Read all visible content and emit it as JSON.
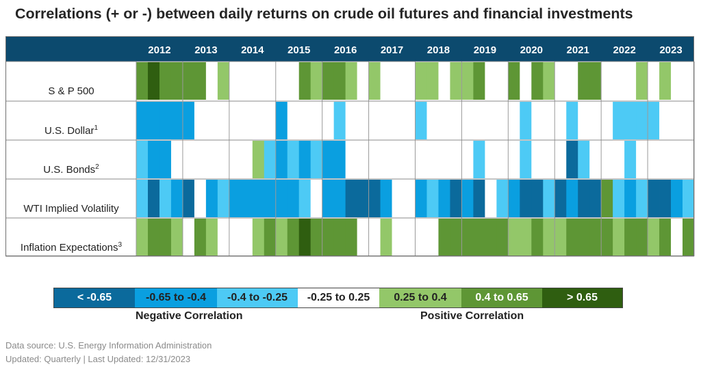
{
  "chart_data": {
    "type": "heatmap",
    "title": "Correlations (+ or -) between daily returns on crude oil futures and financial investments",
    "years": [
      "2012",
      "2013",
      "2014",
      "2015",
      "2016",
      "2017",
      "2018",
      "2019",
      "2020",
      "2021",
      "2022",
      "2023"
    ],
    "quarters_per_year": 4,
    "rows": [
      {
        "label": "S & P 500",
        "footnote": "",
        "values": [
          0.5,
          0.7,
          0.5,
          0.5,
          0.5,
          0.5,
          0.1,
          0.3,
          0.1,
          0.1,
          0.1,
          0.1,
          0.1,
          0.1,
          0.5,
          0.3,
          0.5,
          0.5,
          0.3,
          0.1,
          0.3,
          0.1,
          0.1,
          0.1,
          0.3,
          0.3,
          0.1,
          0.3,
          0.3,
          0.5,
          0.1,
          0.1,
          0.5,
          0.1,
          0.5,
          0.3,
          0.1,
          0.1,
          0.5,
          0.5,
          0.1,
          0.1,
          0.1,
          0.3,
          0.1,
          0.3,
          0.1,
          0.1
        ]
      },
      {
        "label": "U.S. Dollar",
        "footnote": "1",
        "values": [
          -0.5,
          -0.5,
          -0.5,
          -0.5,
          -0.5,
          0.1,
          0.1,
          0.1,
          0.1,
          0.1,
          0.1,
          0.1,
          -0.5,
          0.1,
          0.1,
          0.1,
          0.1,
          -0.3,
          0.1,
          0.1,
          0.1,
          0.1,
          0.1,
          0.1,
          -0.3,
          0.1,
          0.1,
          0.1,
          0.1,
          0.1,
          0.1,
          0.1,
          0.1,
          -0.3,
          0.1,
          0.1,
          0.1,
          -0.3,
          0.1,
          0.1,
          0.1,
          -0.3,
          -0.3,
          -0.3,
          -0.3,
          0.1,
          0.1,
          0.1
        ]
      },
      {
        "label": "U.S. Bonds",
        "footnote": "2",
        "values": [
          -0.3,
          -0.5,
          -0.5,
          0.1,
          0.1,
          0.1,
          0.1,
          0.1,
          0.1,
          0.1,
          0.3,
          -0.3,
          -0.5,
          -0.3,
          -0.5,
          -0.3,
          -0.5,
          -0.5,
          0.1,
          0.1,
          0.1,
          0.1,
          0.1,
          0.1,
          0.1,
          0.1,
          0.1,
          0.1,
          0.1,
          -0.3,
          0.1,
          0.1,
          0.1,
          -0.3,
          0.1,
          0.1,
          0.1,
          -0.7,
          -0.3,
          0.1,
          0.1,
          0.1,
          -0.3,
          0.1,
          0.1,
          0.1,
          0.1,
          0.1
        ]
      },
      {
        "label": "WTI Implied Volatility",
        "footnote": "",
        "values": [
          -0.3,
          -0.7,
          -0.3,
          -0.5,
          -0.7,
          0.1,
          -0.5,
          -0.3,
          -0.5,
          -0.5,
          -0.5,
          -0.5,
          -0.5,
          -0.5,
          -0.3,
          0.1,
          -0.5,
          -0.5,
          -0.7,
          -0.7,
          -0.7,
          -0.5,
          0.1,
          0.1,
          -0.5,
          -0.3,
          -0.5,
          -0.7,
          -0.5,
          -0.7,
          0.1,
          -0.3,
          -0.5,
          -0.7,
          -0.7,
          -0.3,
          -0.7,
          -0.5,
          -0.7,
          -0.7,
          0.5,
          -0.3,
          -0.5,
          -0.3,
          -0.7,
          -0.7,
          -0.5,
          -0.3
        ]
      },
      {
        "label": "Inflation Expectations",
        "footnote": "3",
        "values": [
          0.3,
          0.5,
          0.5,
          0.3,
          0.1,
          0.5,
          0.3,
          0.1,
          0.1,
          0.1,
          0.3,
          0.5,
          0.3,
          0.5,
          0.7,
          0.5,
          0.5,
          0.5,
          0.5,
          0.1,
          0.1,
          0.3,
          0.1,
          0.1,
          0.1,
          0.1,
          0.5,
          0.5,
          0.5,
          0.5,
          0.5,
          0.5,
          0.3,
          0.3,
          0.5,
          0.3,
          0.3,
          0.5,
          0.5,
          0.5,
          0.5,
          0.3,
          0.5,
          0.5,
          0.3,
          0.5,
          0.1,
          0.5
        ]
      }
    ],
    "legend": [
      {
        "label": "< -0.65",
        "color": "#0b6a9c",
        "text_color": "#ffffff"
      },
      {
        "label": "-0.65 to -0.4",
        "color": "#0a9fe0",
        "text_color": "#222222"
      },
      {
        "label": "-0.4 to -0.25",
        "color": "#4dcaf5",
        "text_color": "#222222"
      },
      {
        "label": "-0.25 to 0.25",
        "color": "#ffffff",
        "text_color": "#222222"
      },
      {
        "label": "0.25 to 0.4",
        "color": "#93c769",
        "text_color": "#222222"
      },
      {
        "label": "0.4 to 0.65",
        "color": "#5e9635",
        "text_color": "#ffffff"
      },
      {
        "label": "> 0.65",
        "color": "#2f5e10",
        "text_color": "#ffffff"
      }
    ],
    "negative_label": "Negative Correlation",
    "positive_label": "Positive Correlation"
  },
  "header_bg": "#0c4a6e",
  "footer": {
    "source": "Data source: U.S. Energy Information Administration",
    "updated": "Updated: Quarterly | Last Updated: 12/31/2023"
  }
}
